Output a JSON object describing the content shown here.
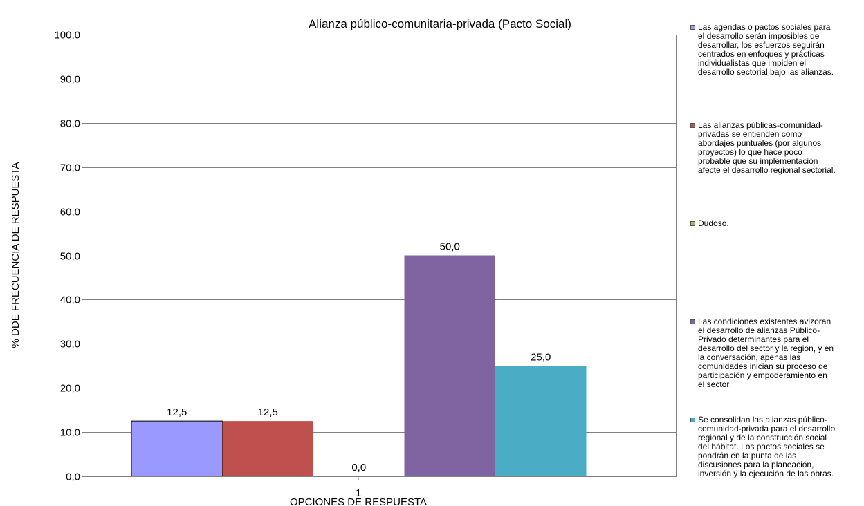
{
  "chart_data": {
    "type": "bar",
    "title": "Alianza público-comunitaria-privada  (Pacto Social)",
    "xlabel": "OPCIONES DE RESPUESTA",
    "ylabel": "% DDE FRECUENCIA DE RESPUESTA",
    "categories": [
      "1"
    ],
    "ylim": [
      0,
      100
    ],
    "ytick_step": 10,
    "ytick_labels": [
      "0,0",
      "10,0",
      "20,0",
      "30,0",
      "40,0",
      "50,0",
      "60,0",
      "70,0",
      "80,0",
      "90,0",
      "100,0"
    ],
    "grid": true,
    "legend_position": "right",
    "series": [
      {
        "name": "Las agendas o pactos sociales para\nel desarrollo serán imposibles de\ndesarrollar, los esfuerzos seguirán\ncentrados en enfoques y prácticas\nindividualistas que impiden el\ndesarrollo sectorial bajo las alianzas.",
        "values": [
          12.5
        ],
        "label": "12,5",
        "color": "#9999FF"
      },
      {
        "name": "Las alianzas públicas-comunidad-\nprivadas se entienden como\nabordajes puntuales (por algunos\nproyectos) lo que hace poco\nprobable que su implementación\nafecte el desarrollo regional sectorial.",
        "values": [
          12.5
        ],
        "label": "12,5",
        "color": "#C0504D"
      },
      {
        "name": "Dudoso.",
        "values": [
          0.0
        ],
        "label": "0,0",
        "color": "#9BBB59"
      },
      {
        "name": "Las condiciones existentes avizoran\nel desarrollo de alianzas Público-\nPrivado determinantes para el\ndesarrollo del sector y la región, y en\nla conversación, apenas las\ncomunidades inician su proceso de\nparticipación y empoderamiento en\nel sector.",
        "values": [
          50.0
        ],
        "label": "50,0",
        "color": "#8064A2"
      },
      {
        "name": "Se consolidan las alianzas público-\ncomunidad-privada para el desarrollo\nregional y de la construcción social\ndel hábitat. Los pactos sociales se\npondrán en la punta de las\ndiscusiones para la planeación,\ninversión y la ejecución de las obras.",
        "values": [
          25.0
        ],
        "label": "25,0",
        "color": "#4BACC6"
      }
    ]
  }
}
